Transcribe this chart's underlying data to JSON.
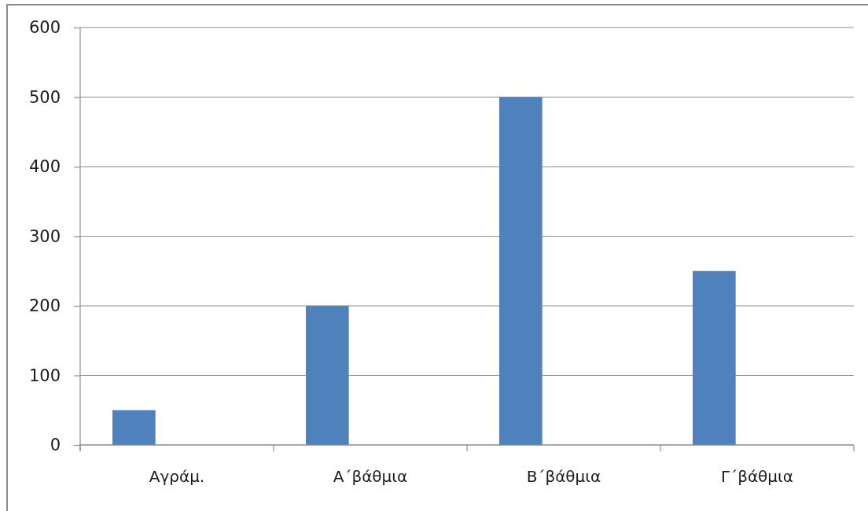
{
  "chart_data": {
    "type": "bar",
    "categories": [
      "Αγράμ.",
      "Α΄βάθμια",
      "Β΄βάθμια",
      "Γ΄βάθμια"
    ],
    "series": [
      {
        "color": "#4f81bd",
        "values": [
          50,
          200,
          500,
          250
        ]
      },
      {
        "values": [
          null,
          null,
          null,
          null
        ]
      },
      {
        "values": [
          null,
          null,
          null,
          null
        ]
      }
    ],
    "ylim": [
      0,
      600
    ],
    "yticks": [
      0,
      100,
      200,
      300,
      400,
      500,
      600
    ],
    "grid": "y"
  }
}
